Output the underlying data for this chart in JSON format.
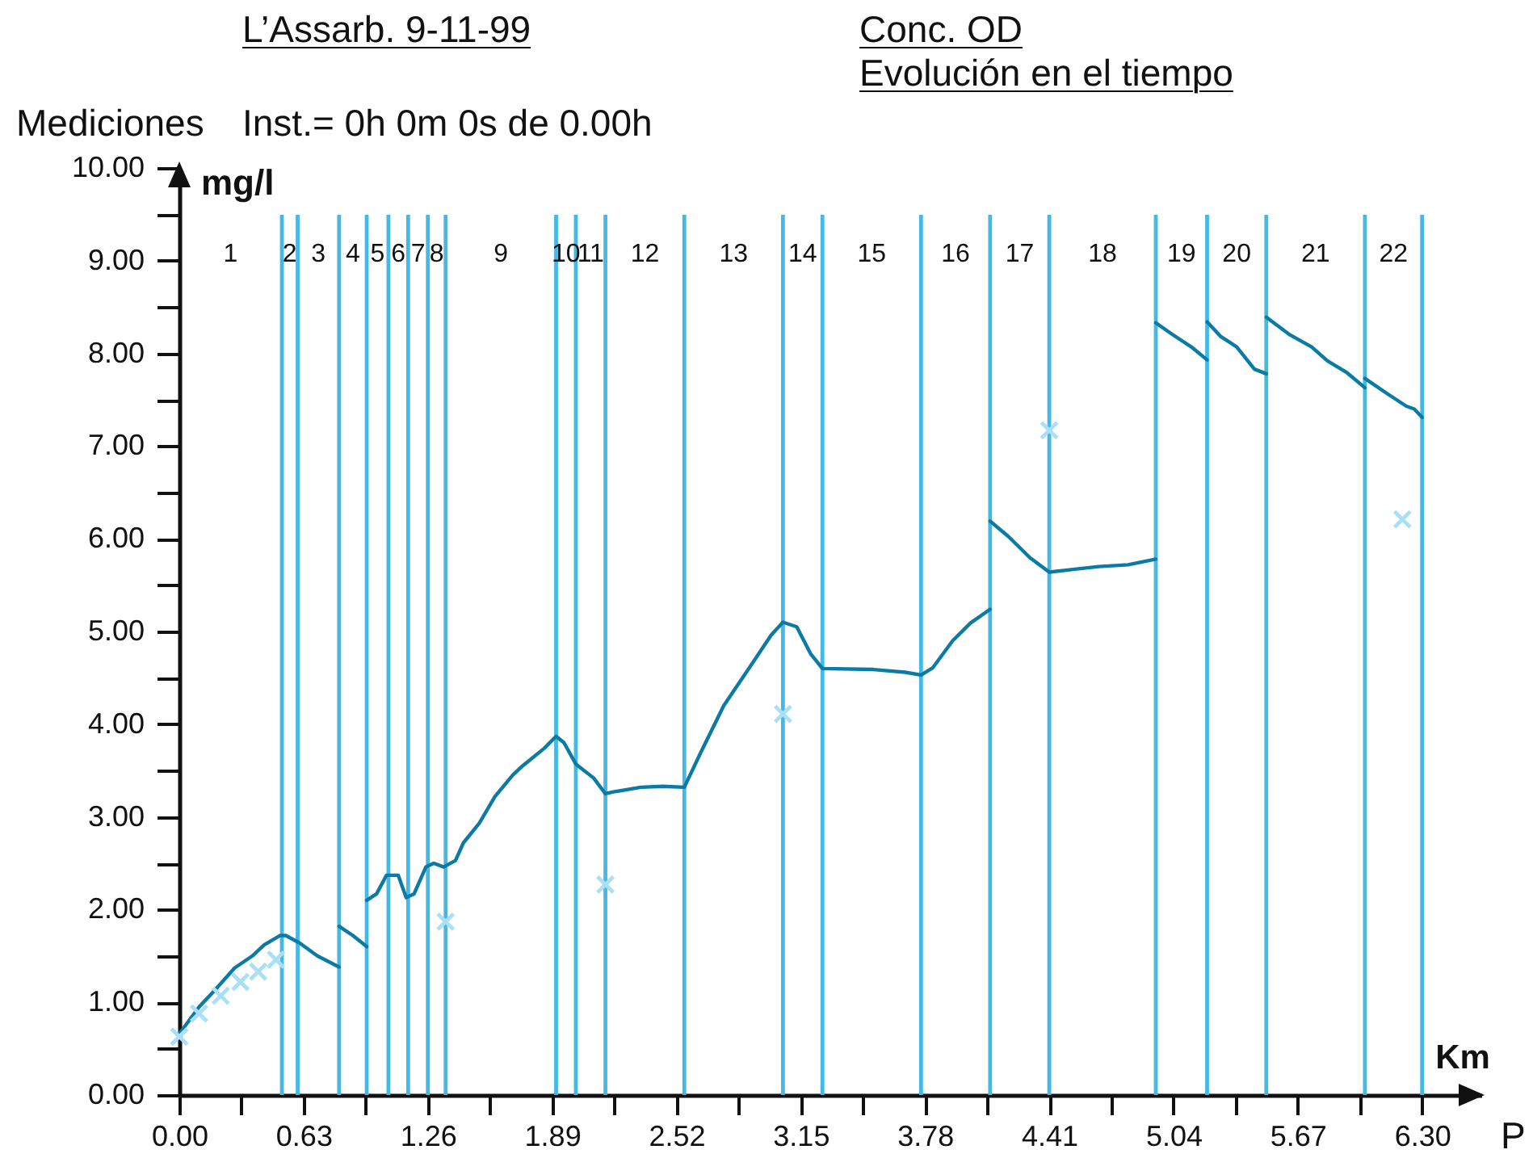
{
  "chart_data": {
    "type": "line",
    "title": "Conc. OD",
    "subtitle": "Evolución en el tiempo",
    "xlabel": "Km",
    "ylabel": "mg/l",
    "annotations": [
      "L’Assarb. 9-11-99",
      "Mediciones",
      "Inst.= 0h 0m 0s de 0.00h",
      "P",
      "1",
      "2",
      "3",
      "4",
      "5",
      "6",
      "7",
      "8",
      "9",
      "10",
      "11",
      "12",
      "13",
      "14",
      "15",
      "16",
      "17",
      "18",
      "19",
      "20",
      "21",
      "22"
    ],
    "series": [
      {
        "type": "line",
        "color": "#0b7ba4",
        "x": [
          0,
          0.1,
          0.18,
          0.28,
          0.37,
          0.43,
          0.51,
          0.54,
          0.61,
          0.7,
          0.81
        ],
        "values": [
          0.66,
          0.95,
          1.13,
          1.37,
          1.5,
          1.62,
          1.72,
          1.72,
          1.64,
          1.5,
          1.38
        ]
      },
      {
        "type": "line",
        "color": "#0b7ba4",
        "x": [
          0.95,
          1.0,
          1.05,
          1.11,
          1.15,
          1.19,
          1.25,
          1.29,
          1.34,
          1.4,
          1.44,
          1.52,
          1.6,
          1.69,
          1.74,
          1.85,
          1.91,
          1.95,
          2.01,
          2.1,
          2.16,
          2.2,
          2.34,
          2.45,
          2.56,
          2.64,
          2.76,
          2.89,
          3.0,
          3.06,
          3.13,
          3.2,
          3.26,
          3.52,
          3.68,
          3.76,
          3.82,
          3.92,
          4.01,
          4.11
        ],
        "values": [
          2.1,
          2.17,
          2.37,
          2.37,
          2.13,
          2.17,
          2.46,
          2.5,
          2.46,
          2.53,
          2.72,
          2.93,
          3.22,
          3.45,
          3.55,
          3.74,
          3.87,
          3.8,
          3.57,
          3.42,
          3.25,
          3.27,
          3.32,
          3.33,
          3.32,
          3.68,
          4.2,
          4.61,
          4.96,
          5.1,
          5.05,
          4.76,
          4.6,
          4.59,
          4.56,
          4.53,
          4.61,
          4.9,
          5.09,
          5.24
        ]
      },
      {
        "type": "line",
        "color": "#0b7ba4",
        "x": [
          4.11,
          4.2,
          4.31,
          4.41,
          4.53,
          4.66,
          4.81,
          4.95
        ],
        "values": [
          6.19,
          6.03,
          5.8,
          5.64,
          5.67,
          5.7,
          5.72,
          5.78
        ]
      },
      {
        "type": "line",
        "color": "#0b7ba4",
        "x": [
          4.95,
          5.03,
          5.13,
          5.21
        ],
        "values": [
          8.33,
          8.21,
          8.07,
          7.93
        ]
      },
      {
        "type": "line",
        "color": "#0b7ba4",
        "x": [
          5.21,
          5.28,
          5.36,
          5.45,
          5.51
        ],
        "values": [
          8.34,
          8.18,
          8.07,
          7.83,
          7.78
        ]
      },
      {
        "type": "line",
        "color": "#0b7ba4",
        "x": [
          5.51,
          5.63,
          5.74,
          5.82,
          5.92,
          6.01
        ],
        "values": [
          8.39,
          8.2,
          8.07,
          7.92,
          7.79,
          7.63
        ]
      },
      {
        "type": "line",
        "color": "#0b7ba4",
        "x": [
          6.01,
          6.12,
          6.22,
          6.26,
          6.3
        ],
        "values": [
          7.73,
          7.57,
          7.43,
          7.4,
          7.31
        ]
      },
      {
        "type": "line",
        "color": "#0b7ba4",
        "x": [
          0.81,
          0.88,
          0.95
        ],
        "values": [
          1.82,
          1.72,
          1.6
        ]
      },
      {
        "type": "scatter",
        "color": "#a9dff7",
        "marker": "cross",
        "x": [
          0,
          0.1,
          0.21,
          0.31,
          0.4,
          0.49,
          1.35,
          2.16,
          3.06,
          4.41,
          6.2
        ],
        "values": [
          0.63,
          0.88,
          1.07,
          1.22,
          1.33,
          1.46,
          1.87,
          2.27,
          4.11,
          7.17,
          6.21
        ]
      }
    ],
    "xlim": [
      0,
      6.6
    ],
    "ylim": [
      0,
      10
    ],
    "xticks": [
      {
        "value": 0,
        "label": "0.00"
      },
      {
        "value": 0.315,
        "label": null
      },
      {
        "value": 0.63,
        "label": "0.63"
      },
      {
        "value": 0.945,
        "label": null
      },
      {
        "value": 1.26,
        "label": "1.26"
      },
      {
        "value": 1.575,
        "label": null
      },
      {
        "value": 1.89,
        "label": "1.89"
      },
      {
        "value": 2.205,
        "label": null
      },
      {
        "value": 2.52,
        "label": "2.52"
      },
      {
        "value": 2.835,
        "label": null
      },
      {
        "value": 3.15,
        "label": "3.15"
      },
      {
        "value": 3.465,
        "label": null
      },
      {
        "value": 3.78,
        "label": "3.78"
      },
      {
        "value": 4.095,
        "label": null
      },
      {
        "value": 4.41,
        "label": "4.41"
      },
      {
        "value": 4.725,
        "label": null
      },
      {
        "value": 5.04,
        "label": "5.04"
      },
      {
        "value": 5.355,
        "label": null
      },
      {
        "value": 5.67,
        "label": "5.67"
      },
      {
        "value": 5.985,
        "label": null
      },
      {
        "value": 6.3,
        "label": "6.30"
      }
    ],
    "yticks": [
      {
        "value": 0,
        "label": "0.00"
      },
      {
        "value": 0.5,
        "label": null
      },
      {
        "value": 1,
        "label": "1.00"
      },
      {
        "value": 1.5,
        "label": null
      },
      {
        "value": 2,
        "label": "2.00"
      },
      {
        "value": 2.5,
        "label": null
      },
      {
        "value": 3,
        "label": "3.00"
      },
      {
        "value": 3.5,
        "label": null
      },
      {
        "value": 4,
        "label": "4.00"
      },
      {
        "value": 4.5,
        "label": null
      },
      {
        "value": 5,
        "label": "5.00"
      },
      {
        "value": 5.5,
        "label": null
      },
      {
        "value": 6,
        "label": "6.00"
      },
      {
        "value": 6.5,
        "label": null
      },
      {
        "value": 7,
        "label": "7.00"
      },
      {
        "value": 7.5,
        "label": null
      },
      {
        "value": 8,
        "label": "8.00"
      },
      {
        "value": 8.5,
        "label": null
      },
      {
        "value": 9,
        "label": "9.00"
      },
      {
        "value": 9.5,
        "label": null
      },
      {
        "value": 10,
        "label": "10.00"
      }
    ],
    "ref_lines": [
      {
        "axis": "x",
        "value": 0.52,
        "color": "#44b9e6"
      },
      {
        "axis": "x",
        "value": 0.6,
        "color": "#44b9e6"
      },
      {
        "axis": "x",
        "value": 0.81,
        "color": "#44b9e6"
      },
      {
        "axis": "x",
        "value": 0.95,
        "color": "#44b9e6"
      },
      {
        "axis": "x",
        "value": 1.06,
        "color": "#44b9e6"
      },
      {
        "axis": "x",
        "value": 1.16,
        "color": "#44b9e6"
      },
      {
        "axis": "x",
        "value": 1.26,
        "color": "#44b9e6"
      },
      {
        "axis": "x",
        "value": 1.35,
        "color": "#44b9e6"
      },
      {
        "axis": "x",
        "value": 1.91,
        "color": "#44b9e6"
      },
      {
        "axis": "x",
        "value": 2.01,
        "color": "#44b9e6"
      },
      {
        "axis": "x",
        "value": 2.16,
        "color": "#44b9e6"
      },
      {
        "axis": "x",
        "value": 2.56,
        "color": "#44b9e6"
      },
      {
        "axis": "x",
        "value": 3.06,
        "color": "#44b9e6"
      },
      {
        "axis": "x",
        "value": 3.26,
        "color": "#44b9e6"
      },
      {
        "axis": "x",
        "value": 3.76,
        "color": "#44b9e6"
      },
      {
        "axis": "x",
        "value": 4.11,
        "color": "#44b9e6"
      },
      {
        "axis": "x",
        "value": 4.41,
        "color": "#44b9e6"
      },
      {
        "axis": "x",
        "value": 4.95,
        "color": "#44b9e6"
      },
      {
        "axis": "x",
        "value": 5.21,
        "color": "#44b9e6"
      },
      {
        "axis": "x",
        "value": 5.51,
        "color": "#44b9e6"
      },
      {
        "axis": "x",
        "value": 6.01,
        "color": "#44b9e6"
      },
      {
        "axis": "x",
        "value": 6.3,
        "color": "#44b9e6"
      }
    ]
  }
}
